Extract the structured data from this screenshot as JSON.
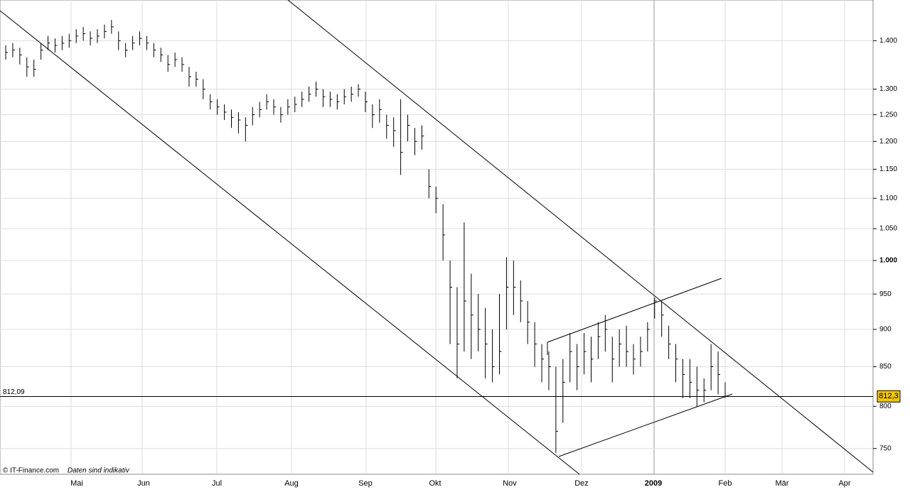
{
  "chart_data": {
    "type": "ohlc",
    "high": [
      1390,
      1395,
      1385,
      1365,
      1360,
      1395,
      1410,
      1405,
      1410,
      1415,
      1425,
      1430,
      1420,
      1425,
      1435,
      1445,
      1420,
      1395,
      1410,
      1420,
      1410,
      1395,
      1385,
      1370,
      1375,
      1365,
      1345,
      1335,
      1320,
      1290,
      1280,
      1270,
      1260,
      1255,
      1245,
      1265,
      1275,
      1290,
      1280,
      1265,
      1280,
      1285,
      1295,
      1305,
      1315,
      1300,
      1295,
      1290,
      1300,
      1305,
      1310,
      1295,
      1270,
      1280,
      1250,
      1245,
      1280,
      1250,
      1225,
      1230,
      1150,
      1120,
      1090,
      1000,
      960,
      1060,
      980,
      950,
      930,
      900,
      950,
      1005,
      1000,
      970,
      940,
      910,
      880,
      870,
      850,
      860,
      895,
      880,
      895,
      890,
      910,
      920,
      890,
      900,
      905,
      880,
      890,
      910,
      945,
      940,
      905,
      880,
      860,
      860,
      850,
      835,
      880,
      870,
      830
    ],
    "low": [
      1360,
      1365,
      1350,
      1325,
      1325,
      1360,
      1380,
      1375,
      1380,
      1385,
      1395,
      1400,
      1390,
      1395,
      1405,
      1415,
      1380,
      1365,
      1380,
      1390,
      1380,
      1365,
      1355,
      1335,
      1345,
      1335,
      1305,
      1305,
      1280,
      1260,
      1250,
      1240,
      1225,
      1215,
      1200,
      1230,
      1245,
      1260,
      1250,
      1235,
      1250,
      1255,
      1265,
      1275,
      1285,
      1265,
      1265,
      1260,
      1270,
      1275,
      1285,
      1255,
      1225,
      1235,
      1205,
      1190,
      1140,
      1200,
      1175,
      1185,
      1100,
      1075,
      1000,
      880,
      835,
      870,
      860,
      870,
      835,
      830,
      840,
      900,
      920,
      910,
      880,
      850,
      830,
      820,
      745,
      780,
      830,
      820,
      840,
      830,
      860,
      870,
      830,
      850,
      850,
      840,
      850,
      870,
      915,
      890,
      860,
      830,
      810,
      810,
      800,
      805,
      820,
      815,
      810
    ],
    "close": [
      1375,
      1380,
      1370,
      1345,
      1340,
      1380,
      1395,
      1390,
      1395,
      1400,
      1410,
      1415,
      1405,
      1410,
      1420,
      1430,
      1400,
      1380,
      1395,
      1405,
      1395,
      1380,
      1370,
      1350,
      1360,
      1350,
      1325,
      1320,
      1300,
      1275,
      1265,
      1255,
      1245,
      1240,
      1230,
      1250,
      1260,
      1275,
      1265,
      1250,
      1265,
      1270,
      1280,
      1290,
      1300,
      1285,
      1280,
      1275,
      1285,
      1290,
      1300,
      1275,
      1250,
      1260,
      1230,
      1220,
      1180,
      1230,
      1200,
      1210,
      1120,
      1100,
      1040,
      960,
      880,
      940,
      920,
      900,
      880,
      850,
      870,
      960,
      960,
      940,
      910,
      880,
      860,
      850,
      770,
      830,
      870,
      850,
      870,
      860,
      890,
      900,
      860,
      880,
      870,
      860,
      870,
      900,
      940,
      920,
      880,
      860,
      840,
      830,
      820,
      820,
      850,
      840,
      812.3
    ],
    "x_labels": [
      "Mai",
      "Jun",
      "Jul",
      "Aug",
      "Sep",
      "Okt",
      "Nov",
      "Dez",
      "2009",
      "Feb",
      "Mär",
      "Apr"
    ],
    "ylim": [
      721,
      1490
    ],
    "log_scale": true,
    "grid": true,
    "yticks": [
      {
        "value": 1400,
        "label": "1.400"
      },
      {
        "value": 1300,
        "label": "1.300"
      },
      {
        "value": 1250,
        "label": "1.250"
      },
      {
        "value": 1200,
        "label": "1.200"
      },
      {
        "value": 1150,
        "label": "1.150"
      },
      {
        "value": 1100,
        "label": "1.100"
      },
      {
        "value": 1050,
        "label": "1.050"
      },
      {
        "value": 1000,
        "label": "1.000"
      },
      950,
      900,
      850,
      800,
      750
    ],
    "reference": {
      "value": 812.09,
      "label": "812,09"
    },
    "last": {
      "value": 812.3,
      "label": "812,3"
    },
    "footer": {
      "copyright": "© IT-Finance.com",
      "note": "Daten sind indikativ"
    }
  }
}
